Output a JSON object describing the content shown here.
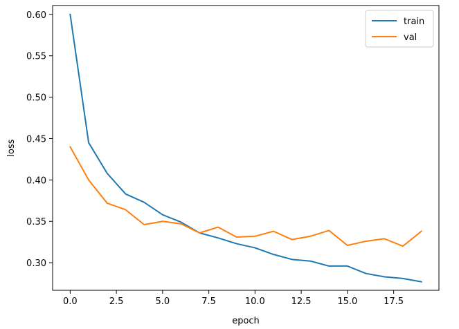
{
  "chart_data": {
    "type": "line",
    "xlabel": "epoch",
    "ylabel": "loss",
    "xlim": [
      -0.95,
      19.95
    ],
    "ylim": [
      0.2667,
      0.6107
    ],
    "xticks": [
      0.0,
      2.5,
      5.0,
      7.5,
      10.0,
      12.5,
      15.0,
      17.5
    ],
    "xtick_labels": [
      "0.0",
      "2.5",
      "5.0",
      "7.5",
      "10.0",
      "12.5",
      "15.0",
      "17.5"
    ],
    "yticks": [
      0.3,
      0.35,
      0.4,
      0.45,
      0.5,
      0.55,
      0.6
    ],
    "ytick_labels": [
      "0.30",
      "0.35",
      "0.40",
      "0.45",
      "0.50",
      "0.55",
      "0.60"
    ],
    "grid": false,
    "legend_position": "top-right",
    "x": [
      0,
      1,
      2,
      3,
      4,
      5,
      6,
      7,
      8,
      9,
      10,
      11,
      12,
      13,
      14,
      15,
      16,
      17,
      18,
      19
    ],
    "series": [
      {
        "name": "train",
        "color": "#1f77b4",
        "values": [
          0.6,
          0.445,
          0.408,
          0.383,
          0.373,
          0.358,
          0.349,
          0.336,
          0.33,
          0.323,
          0.318,
          0.31,
          0.304,
          0.302,
          0.296,
          0.296,
          0.287,
          0.283,
          0.281,
          0.277
        ]
      },
      {
        "name": "val",
        "color": "#ff7f0e",
        "values": [
          0.44,
          0.4,
          0.372,
          0.364,
          0.346,
          0.35,
          0.347,
          0.336,
          0.343,
          0.331,
          0.332,
          0.338,
          0.328,
          0.332,
          0.339,
          0.321,
          0.326,
          0.329,
          0.32,
          0.338
        ]
      }
    ]
  }
}
